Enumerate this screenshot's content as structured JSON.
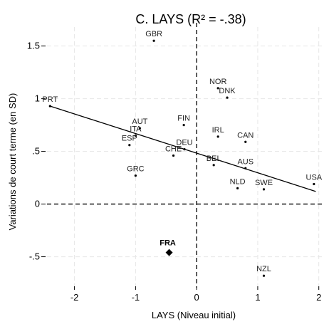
{
  "chart_data": {
    "type": "scatter",
    "title": "C. LAYS (R² = -.38)",
    "xlabel": "LAYS (Niveau initial)",
    "ylabel": "Variations de court terme (en SD)",
    "xlim": [
      -2.45,
      2.05
    ],
    "ylim": [
      -0.78,
      1.68
    ],
    "xticks": [
      -2,
      -1,
      0,
      1,
      2
    ],
    "xtick_labels": [
      "-2",
      "-1",
      "0",
      "1",
      "2"
    ],
    "yticks": [
      -0.5,
      0,
      0.5,
      1,
      1.5
    ],
    "ytick_labels": [
      "-.5",
      "0",
      ".5",
      "1",
      "1.5"
    ],
    "grid": true,
    "reference_lines": {
      "x": 0,
      "y": 0,
      "style": "dashed"
    },
    "fit_line": {
      "x": [
        -2.4,
        1.95
      ],
      "y": [
        0.93,
        0.12
      ]
    },
    "points": [
      {
        "label": "PRT",
        "x": -2.4,
        "y": 0.93
      },
      {
        "label": "GBR",
        "x": -0.7,
        "y": 1.55
      },
      {
        "label": "NOR",
        "x": 0.35,
        "y": 1.1
      },
      {
        "label": "DNK",
        "x": 0.5,
        "y": 1.01
      },
      {
        "label": "AUT",
        "x": -0.93,
        "y": 0.72
      },
      {
        "label": "ITA",
        "x": -1.0,
        "y": 0.65
      },
      {
        "label": "ESP",
        "x": -1.1,
        "y": 0.56
      },
      {
        "label": "FIN",
        "x": -0.21,
        "y": 0.75
      },
      {
        "label": "IRL",
        "x": 0.35,
        "y": 0.64
      },
      {
        "label": "CAN",
        "x": 0.8,
        "y": 0.59
      },
      {
        "label": "DEU",
        "x": -0.2,
        "y": 0.52
      },
      {
        "label": "CHE",
        "x": -0.38,
        "y": 0.46
      },
      {
        "label": "BEL",
        "x": 0.28,
        "y": 0.37
      },
      {
        "label": "AUS",
        "x": 0.8,
        "y": 0.34
      },
      {
        "label": "GRC",
        "x": -1.0,
        "y": 0.27
      },
      {
        "label": "NLD",
        "x": 0.67,
        "y": 0.15
      },
      {
        "label": "SWE",
        "x": 1.1,
        "y": 0.14
      },
      {
        "label": "USA",
        "x": 1.92,
        "y": 0.19
      },
      {
        "label": "NZL",
        "x": 1.1,
        "y": -0.68
      }
    ],
    "highlight_point": {
      "label": "FRA",
      "x": -0.45,
      "y": -0.46
    }
  }
}
